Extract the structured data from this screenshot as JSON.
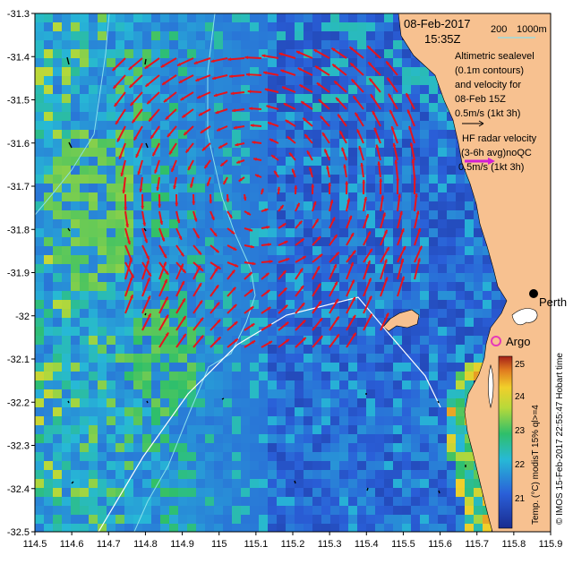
{
  "title": {
    "date": "08-Feb-2017",
    "time": "15:35Z"
  },
  "bathymetry_legend": {
    "shallow": "200",
    "deep": "1000m"
  },
  "altimetry_note": [
    "Altimetric sealevel",
    "(0.1m contours)",
    "and velocity for",
    "08-Feb 15Z",
    "0.5m/s (1kt 3h)"
  ],
  "hf_radar_note": [
    "HF radar velocity",
    "(3-6h avg)noQC",
    "0.5m/s (1kt 3h)"
  ],
  "place_labels": {
    "perth": "Perth",
    "argo": "Argo"
  },
  "credit": "© IMOS 15-Feb-2017 22:55:47 Hobart time",
  "colorbar": {
    "label": "Temp. (°C) modisT 15% ql>=4",
    "ticks": [
      "21",
      "22",
      "23",
      "24",
      "25"
    ]
  },
  "colors": {
    "land": "#f7c190",
    "ocean_deep": "#0d2a8c",
    "hf_arrow": "#e8131b",
    "bathy_line": "#8ae0ec",
    "argo": "#e63ab8",
    "hf_scale_arrow": "#d21fd6"
  },
  "icons": {
    "perth_marker": "filled-dot-icon",
    "argo_marker": "ring-icon"
  },
  "chart_data": {
    "type": "heatmap",
    "xlabel": "",
    "ylabel": "",
    "xlim": [
      114.5,
      115.9
    ],
    "ylim": [
      -32.5,
      -31.3
    ],
    "x_ticks": [
      "114.5",
      "114.6",
      "114.7",
      "114.8",
      "114.9",
      "115",
      "115.1",
      "115.2",
      "115.3",
      "115.4",
      "115.5",
      "115.6",
      "115.7",
      "115.8",
      "115.9"
    ],
    "y_ticks": [
      "-31.3",
      "-31.4",
      "-31.5",
      "-31.6",
      "-31.7",
      "-31.8",
      "-31.9",
      "-32",
      "-32.1",
      "-32.2",
      "-32.3",
      "-32.4",
      "-32.5"
    ],
    "colorscale_range": [
      20.5,
      25
    ],
    "hf_arrow_field": {
      "lon_range": [
        114.8,
        115.45
      ],
      "lat_range": [
        -32.1,
        -31.45
      ],
      "pattern": "anticyclonic flow: north-westward in the south, westward in the north, south-westward in the west"
    }
  }
}
